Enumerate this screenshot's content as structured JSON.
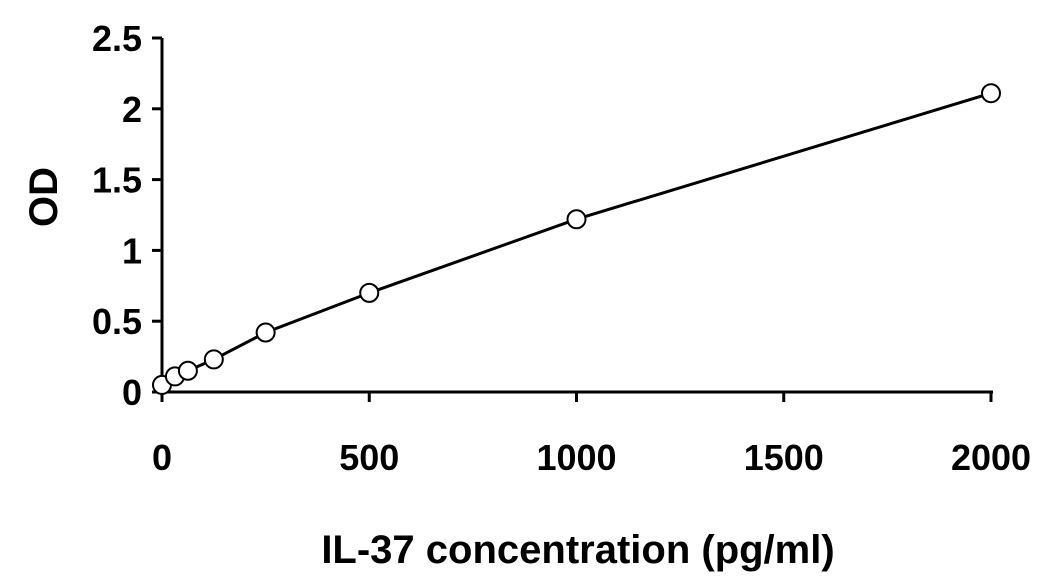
{
  "chart_data": {
    "type": "line",
    "title": "",
    "xlabel": "IL-37 concentration (pg/ml)",
    "ylabel": "OD",
    "xlim": [
      0,
      2000
    ],
    "ylim": [
      0,
      2.5
    ],
    "xticks": [
      0,
      500,
      1000,
      1500,
      2000
    ],
    "yticks": [
      0,
      0.5,
      1,
      1.5,
      2,
      2.5
    ],
    "xtick_labels": [
      "0",
      "500",
      "1000",
      "1500",
      "2000"
    ],
    "ytick_labels": [
      "0",
      "0.5",
      "1",
      "1.5",
      "2",
      "2.5"
    ],
    "grid": false,
    "legend": "none",
    "series": [
      {
        "x": [
          0,
          31.25,
          62.5,
          125,
          250,
          500,
          1000,
          2000
        ],
        "y": [
          0.05,
          0.11,
          0.15,
          0.23,
          0.42,
          0.7,
          1.22,
          2.11
        ],
        "color": "#000000",
        "marker": "open-circle"
      }
    ]
  }
}
